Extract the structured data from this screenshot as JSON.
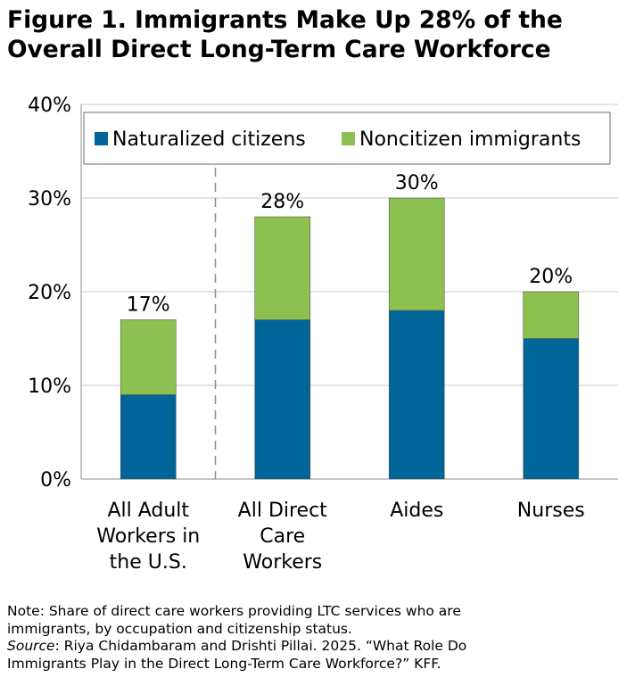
{
  "title_lines": [
    "Figure 1. Immigrants Make Up 28% of the",
    "Overall Direct Long-Term Care Workforce"
  ],
  "chart_data": {
    "type": "bar",
    "stacked": true,
    "title": "Figure 1. Immigrants Make Up 28% of the Overall Direct Long-Term Care Workforce",
    "categories": [
      [
        "All Adult",
        "Workers in",
        "the U.S."
      ],
      [
        "All Direct",
        "Care",
        "Workers"
      ],
      [
        "Aides"
      ],
      [
        "Nurses"
      ]
    ],
    "series": [
      {
        "name": "Naturalized citizens",
        "color": "#006699",
        "values": [
          9,
          17,
          18,
          15
        ]
      },
      {
        "name": "Noncitizen immigrants",
        "color": "#8CC152",
        "values": [
          8,
          11,
          12,
          5
        ]
      }
    ],
    "total_labels": [
      "17%",
      "28%",
      "30%",
      "20%"
    ],
    "y_ticks": [
      "0%",
      "10%",
      "20%",
      "30%",
      "40%"
    ],
    "ylim": [
      0,
      40
    ],
    "grid": true,
    "legend": "top",
    "divider": "dashed line between first and second category",
    "xlabel": "",
    "ylabel": ""
  },
  "notes": {
    "note_line1": "Note: Share of direct care workers providing LTC services who are",
    "note_line2": "immigrants, by occupation and citizenship status.",
    "source_label": "Source",
    "source_line1_rest": ": Riya Chidambaram and Drishti Pillai. 2025. “What Role Do",
    "source_line2": "Immigrants Play in the Direct Long-Term Care Workforce?” KFF."
  }
}
